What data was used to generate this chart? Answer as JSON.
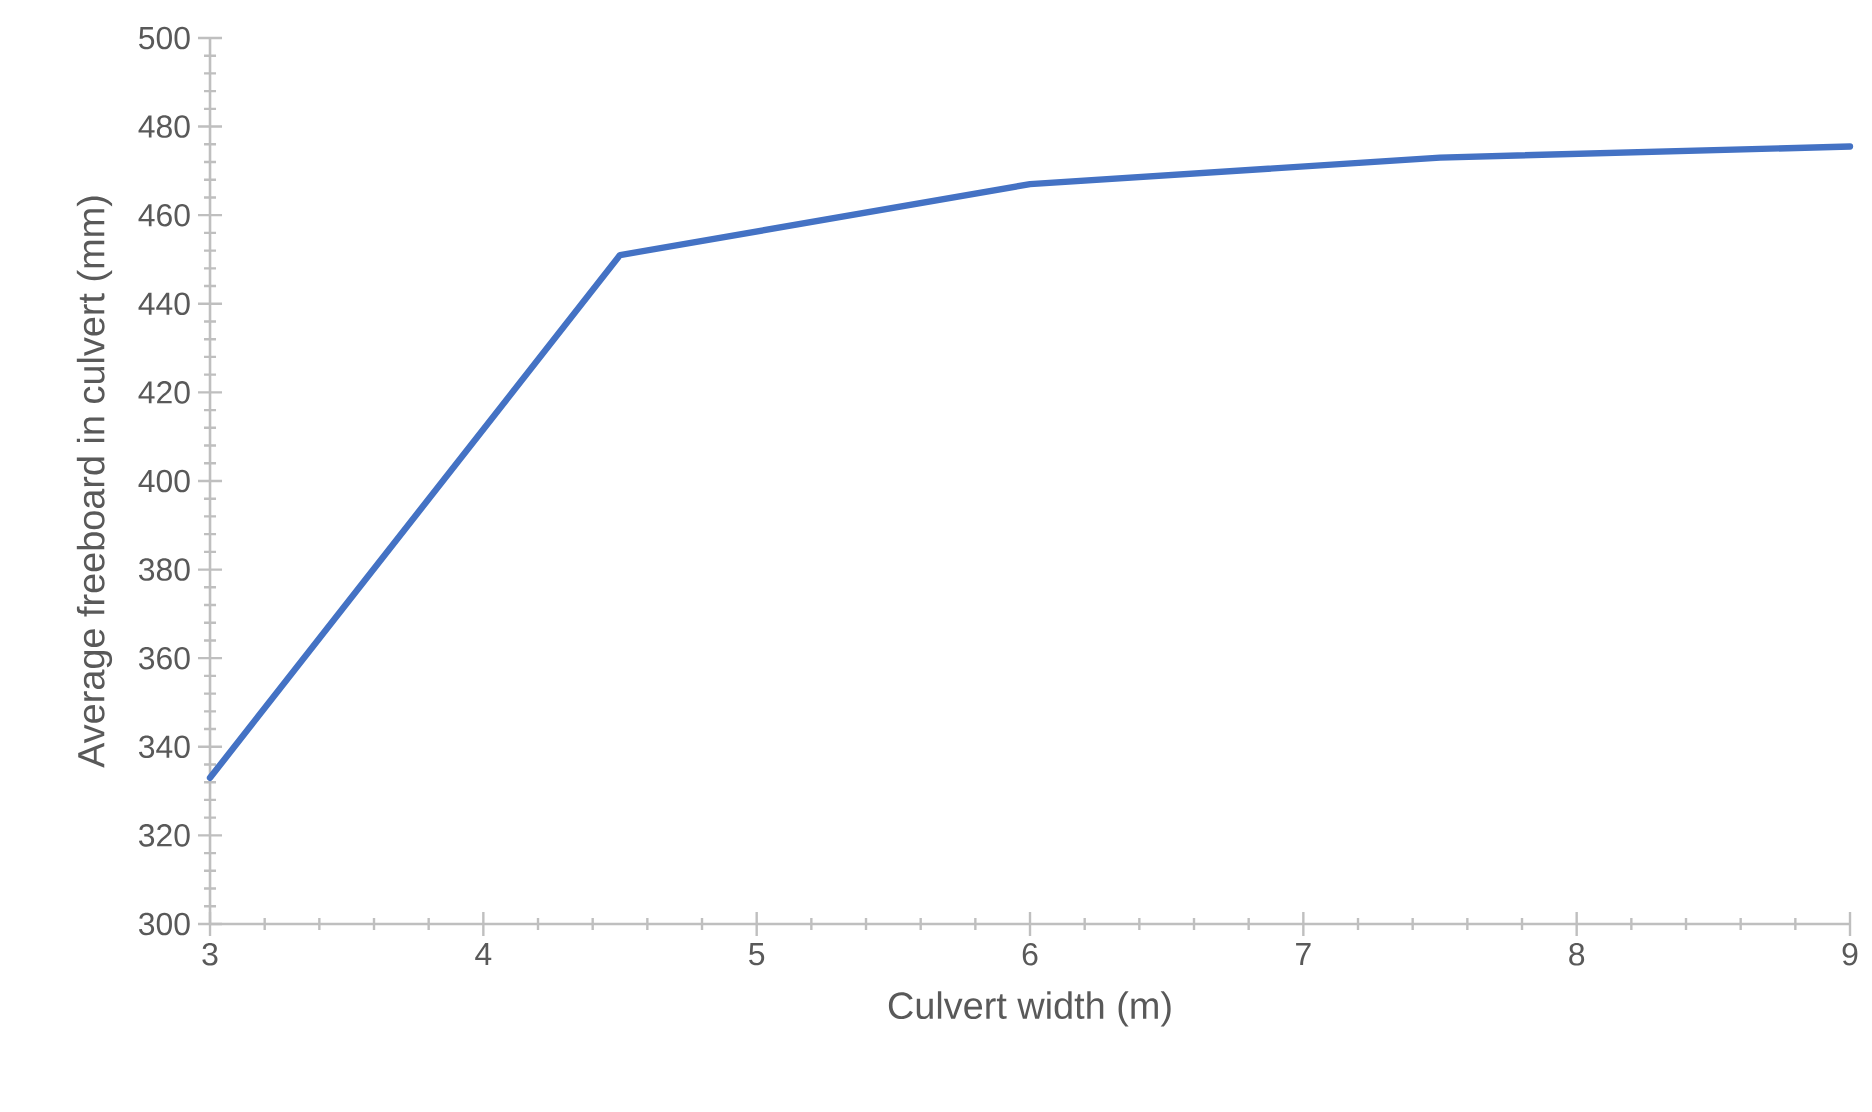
{
  "chart_data": {
    "type": "line",
    "xlabel": "Culvert width (m)",
    "ylabel": "Average freeboard in culvert (mm)",
    "x": [
      3,
      4.5,
      6,
      7.5,
      9
    ],
    "series": [
      {
        "color": "#4472c4",
        "values": [
          333,
          451,
          467,
          473,
          475.5
        ]
      }
    ],
    "xlim": [
      3,
      9
    ],
    "xticks": [
      3,
      4,
      5,
      6,
      7,
      8,
      9
    ],
    "ylim": [
      300,
      500
    ],
    "yticks": [
      300,
      320,
      340,
      360,
      380,
      400,
      420,
      440,
      460,
      480,
      500
    ],
    "marker": "none",
    "line_style": "solid"
  }
}
